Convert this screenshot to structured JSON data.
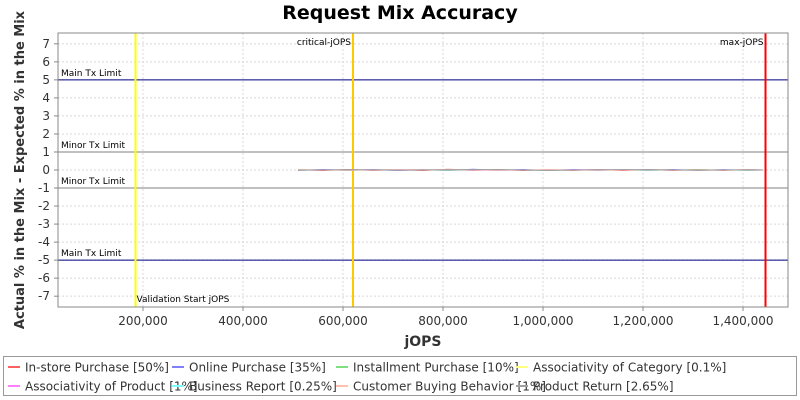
{
  "chart_data": {
    "type": "line",
    "title": "Request Mix Accuracy",
    "xlabel": "jOPS",
    "ylabel": "Actual % in the Mix - Expected % in the Mix",
    "xlim": [
      30000,
      1490000
    ],
    "ylim": [
      -7.6,
      7.6
    ],
    "xticks": [
      200000,
      400000,
      600000,
      800000,
      1000000,
      1200000,
      1400000
    ],
    "xtick_labels": [
      "200,000",
      "400,000",
      "600,000",
      "800,000",
      "1,000,000",
      "1,200,000",
      "1,400,000"
    ],
    "yticks": [
      7,
      6,
      5,
      4,
      3,
      2,
      1,
      0,
      -1,
      -2,
      -3,
      -4,
      -5,
      -6,
      -7
    ],
    "ytick_labels": [
      "7",
      "6",
      "5",
      "4",
      "3",
      "2",
      "1",
      "0",
      "-1",
      "-2",
      "-3",
      "-4",
      "-5",
      "-6",
      "-7"
    ],
    "grid": true,
    "legend_position": "bottom",
    "horizontal_lines": [
      {
        "label": "Main Tx Limit",
        "y": 5,
        "color": "#000080"
      },
      {
        "label": "Minor Tx Limit",
        "y": 1,
        "color": "#808080"
      },
      {
        "label": "Minor Tx Limit",
        "y": -1,
        "color": "#808080"
      },
      {
        "label": "Main Tx Limit",
        "y": -5,
        "color": "#000080"
      }
    ],
    "vertical_lines": [
      {
        "label": "Validation Start jOPS",
        "x": 185000,
        "color": "#ffff00"
      },
      {
        "label": "critical-jOPS",
        "x": 620000,
        "color": "#ffc800"
      },
      {
        "label": "max-jOPS",
        "x": 1445000,
        "color": "#ff0000"
      }
    ],
    "series": [
      {
        "name": "In-store Purchase [50%]",
        "color": "#ff6060",
        "x": [
          510000,
          560000,
          610000,
          660000,
          710000,
          760000,
          810000,
          860000,
          910000,
          960000,
          1010000,
          1060000,
          1110000,
          1160000,
          1210000,
          1260000,
          1310000,
          1360000,
          1410000,
          1440000
        ],
        "values": [
          0.02,
          -0.03,
          0.03,
          -0.02,
          0.02,
          -0.03,
          0.04,
          -0.02,
          0.03,
          -0.03,
          0.02,
          -0.02,
          0.03,
          -0.03,
          0.02,
          -0.02,
          0.03,
          -0.02,
          0.02,
          0.0
        ]
      },
      {
        "name": "Online Purchase [35%]",
        "color": "#8080ff",
        "x": [
          510000,
          560000,
          610000,
          660000,
          710000,
          760000,
          810000,
          860000,
          910000,
          960000,
          1010000,
          1060000,
          1110000,
          1160000,
          1210000,
          1260000,
          1310000,
          1360000,
          1410000,
          1440000
        ],
        "values": [
          -0.02,
          0.03,
          -0.02,
          0.03,
          -0.03,
          0.02,
          -0.03,
          0.04,
          -0.02,
          0.03,
          -0.03,
          0.03,
          -0.02,
          0.02,
          -0.03,
          0.03,
          -0.02,
          0.02,
          -0.02,
          0.0
        ]
      },
      {
        "name": "Installment Purchase [10%]",
        "color": "#80e080",
        "x": [
          510000,
          610000,
          710000,
          810000,
          910000,
          1010000,
          1110000,
          1210000,
          1310000,
          1410000,
          1440000
        ],
        "values": [
          0.01,
          -0.01,
          0.02,
          -0.01,
          0.01,
          -0.02,
          0.01,
          -0.01,
          0.01,
          -0.01,
          0.0
        ]
      },
      {
        "name": "Associativity of Category [0.1%]",
        "color": "#ffff80",
        "x": [
          510000,
          710000,
          910000,
          1110000,
          1310000,
          1440000
        ],
        "values": [
          0.0,
          0.0,
          0.0,
          0.0,
          0.0,
          0.0
        ]
      },
      {
        "name": "Associativity of Product [1%]",
        "color": "#ff80ff",
        "x": [
          510000,
          710000,
          910000,
          1110000,
          1310000,
          1440000
        ],
        "values": [
          0.0,
          0.01,
          -0.01,
          0.01,
          0.0,
          0.0
        ]
      },
      {
        "name": "Business Report [0.25%]",
        "color": "#80ffff",
        "x": [
          510000,
          710000,
          910000,
          1110000,
          1310000,
          1440000
        ],
        "values": [
          0.0,
          0.0,
          0.0,
          0.0,
          0.0,
          0.0
        ]
      },
      {
        "name": "Customer Buying Behavior [1%]",
        "color": "#ffc0b0",
        "x": [
          510000,
          610000,
          710000,
          810000,
          910000,
          1010000,
          1110000,
          1210000,
          1310000,
          1410000,
          1440000
        ],
        "values": [
          0.01,
          -0.01,
          0.01,
          0.02,
          -0.01,
          0.01,
          -0.01,
          0.01,
          -0.01,
          0.01,
          0.0
        ]
      },
      {
        "name": "Product Return [2.65%]",
        "color": "#a0a0a0",
        "x": [
          510000,
          610000,
          710000,
          810000,
          910000,
          1010000,
          1110000,
          1210000,
          1310000,
          1410000,
          1440000
        ],
        "values": [
          -0.01,
          0.02,
          -0.01,
          0.01,
          0.02,
          -0.02,
          0.01,
          0.02,
          -0.01,
          0.01,
          0.0
        ]
      }
    ]
  }
}
